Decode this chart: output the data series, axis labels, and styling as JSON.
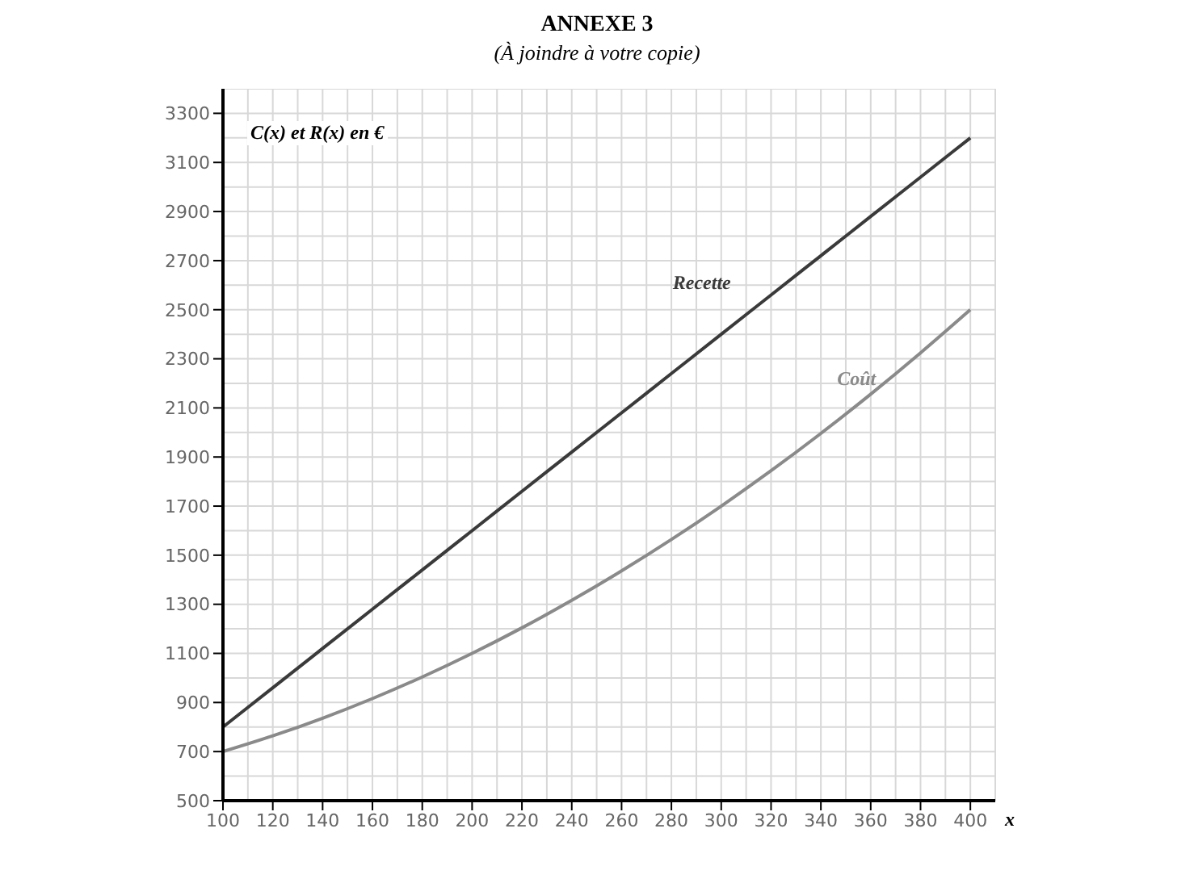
{
  "chart_data": {
    "type": "line",
    "title": "ANNEXE 3",
    "subtitle": "(À joindre à votre copie)",
    "xlabel": "x",
    "ylabel": "C(x) et R(x) en €",
    "x": [
      100,
      120,
      140,
      160,
      180,
      200,
      220,
      240,
      260,
      280,
      300,
      320,
      340,
      360,
      380,
      400
    ],
    "series": [
      {
        "name": "Recette",
        "color": "#3a3a3a",
        "values": [
          800,
          960,
          1120,
          1280,
          1440,
          1600,
          1760,
          1920,
          2080,
          2240,
          2400,
          2560,
          2720,
          2880,
          3040,
          3200
        ]
      },
      {
        "name": "Coût",
        "color": "#8a8a8a",
        "values": [
          700,
          764,
          836,
          916,
          1004,
          1100,
          1204,
          1316,
          1436,
          1564,
          1700,
          1844,
          1996,
          2156,
          2324,
          2500
        ]
      }
    ],
    "xlim": [
      100,
      410
    ],
    "ylim": [
      500,
      3400
    ],
    "xticks": [
      100,
      120,
      140,
      160,
      180,
      200,
      220,
      240,
      260,
      280,
      300,
      320,
      340,
      360,
      380,
      400
    ],
    "yticks": [
      500,
      700,
      900,
      1100,
      1300,
      1500,
      1700,
      1900,
      2100,
      2300,
      2500,
      2700,
      2900,
      3100,
      3300
    ],
    "grid": true,
    "legend": false,
    "marker": "none",
    "line_style": "solid"
  }
}
